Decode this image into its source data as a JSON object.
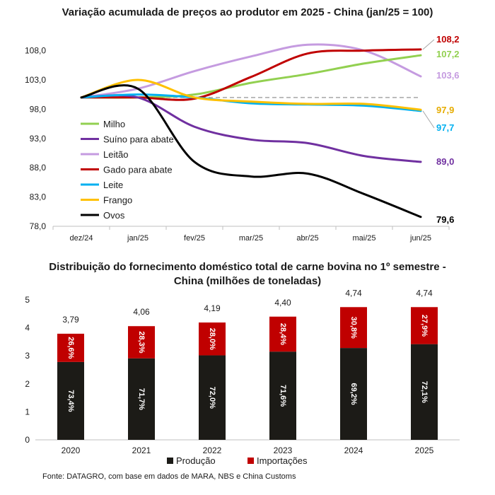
{
  "source": "Fonte: DATAGRO, com base em dados de MARA, NBS e China Customs",
  "chart_data": [
    {
      "type": "line",
      "title": "Variação acumulada de preços ao produtor em 2025 - China (jan/25 = 100)",
      "categories": [
        "dez/24",
        "jan/25",
        "fev/25",
        "mar/25",
        "abr/25",
        "mai/25",
        "jun/25"
      ],
      "y_ticks": [
        "78,0",
        "83,0",
        "88,0",
        "93,0",
        "98,0",
        "103,0",
        "108,0"
      ],
      "ylim": [
        78,
        110
      ],
      "reference_line": 100,
      "legend_position": "left",
      "series": [
        {
          "name": "Milho",
          "color": "#92d050",
          "values": [
            100.0,
            100.0,
            100.5,
            102.5,
            104.0,
            105.8,
            107.2
          ],
          "end_label": "107,2"
        },
        {
          "name": "Suíno para abate",
          "color": "#7030a0",
          "values": [
            100.0,
            100.0,
            95.0,
            92.8,
            92.2,
            90.0,
            89.0
          ],
          "end_label": "89,0"
        },
        {
          "name": "Leitão",
          "color": "#c59be0",
          "values": [
            100.0,
            101.5,
            104.5,
            107.0,
            109.0,
            108.0,
            103.6
          ],
          "end_label": "103,6"
        },
        {
          "name": "Gado para abate",
          "color": "#c00000",
          "values": [
            100.0,
            100.0,
            99.8,
            103.5,
            107.5,
            108.0,
            108.2
          ],
          "end_label": "108,2"
        },
        {
          "name": "Leite",
          "color": "#00b0f0",
          "values": [
            100.0,
            100.5,
            100.0,
            99.0,
            98.8,
            98.6,
            97.7
          ],
          "end_label": "97,7"
        },
        {
          "name": "Frango",
          "color": "#ffc000",
          "values": [
            100.0,
            103.0,
            100.0,
            99.3,
            98.9,
            98.9,
            97.9
          ],
          "end_label": "97,9"
        },
        {
          "name": "Ovos",
          "color": "#000000",
          "values": [
            100.0,
            101.5,
            89.0,
            86.5,
            87.0,
            83.5,
            79.6
          ],
          "end_label": "79,6"
        }
      ]
    },
    {
      "type": "bar",
      "stacked": true,
      "title": "Distribuição do fornecimento doméstico total de carne bovina no 1º semestre - China (milhões de toneladas)",
      "categories": [
        "2020",
        "2021",
        "2022",
        "2023",
        "2024",
        "2025"
      ],
      "y_ticks": [
        "0",
        "1",
        "2",
        "3",
        "4",
        "5"
      ],
      "ylim": [
        0,
        5
      ],
      "totals": [
        3.79,
        4.06,
        4.19,
        4.4,
        4.74,
        4.74
      ],
      "total_labels": [
        "3,79",
        "4,06",
        "4,19",
        "4,40",
        "4,74",
        "4,74"
      ],
      "legend_position": "bottom",
      "series": [
        {
          "name": "Produção",
          "color": "#1c1b17",
          "share": [
            73.4,
            71.7,
            72.0,
            71.6,
            69.2,
            72.1
          ],
          "labels": [
            "73,4%",
            "71,7%",
            "72,0%",
            "71,6%",
            "69,2%",
            "72,1%"
          ]
        },
        {
          "name": "Importações",
          "color": "#c00000",
          "share": [
            26.6,
            28.3,
            28.0,
            28.4,
            30.8,
            27.9
          ],
          "labels": [
            "26,6%",
            "28,3%",
            "28,0%",
            "28,4%",
            "30,8%",
            "27,9%"
          ]
        }
      ]
    }
  ]
}
